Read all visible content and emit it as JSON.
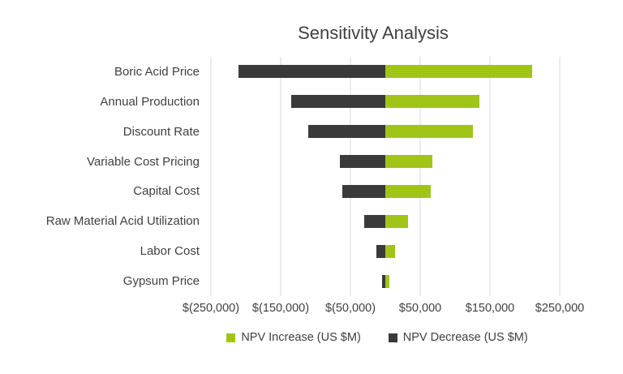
{
  "title": "Sensitivity Analysis",
  "colors": {
    "increase": "#a1c517",
    "decrease": "#3a3a3a",
    "gridline": "#d9d9d9",
    "text": "#404040"
  },
  "chart_data": {
    "type": "bar",
    "orientation": "horizontal",
    "style": "tornado",
    "title": "Sensitivity Analysis",
    "categories": [
      "Boric Acid Price",
      "Annual Production",
      "Discount Rate",
      "Variable Cost Pricing",
      "Capital Cost",
      "Raw Material Acid Utilization",
      "Labor Cost",
      "Gypsum Price"
    ],
    "series": [
      {
        "name": "NPV Increase (US $M)",
        "color": "#a1c517",
        "values": [
          210000,
          135000,
          125000,
          68000,
          65000,
          32000,
          14000,
          6000
        ]
      },
      {
        "name": "NPV Decrease (US $M)",
        "color": "#3a3a3a",
        "values": [
          -210000,
          -135000,
          -110000,
          -65000,
          -62000,
          -30000,
          -13000,
          -5000
        ]
      }
    ],
    "xlim": [
      -250000,
      250000
    ],
    "x_ticks": [
      {
        "value": -250000,
        "label": "$(250,000)"
      },
      {
        "value": -150000,
        "label": "$(150,000)"
      },
      {
        "value": -50000,
        "label": "$(50,000)"
      },
      {
        "value": 50000,
        "label": "$50,000"
      },
      {
        "value": 150000,
        "label": "$150,000"
      },
      {
        "value": 250000,
        "label": "$250,000"
      }
    ],
    "grid": true,
    "legend_position": "bottom"
  }
}
